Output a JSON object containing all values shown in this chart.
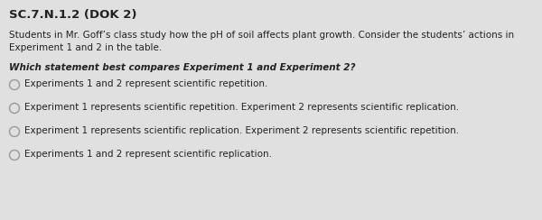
{
  "title": "SC.7.N.1.2 (DOK 2)",
  "body_text": "Students in Mr. Goff’s class study how the pH of soil affects plant growth. Consider the students’ actions in\nExperiment 1 and 2 in the table.",
  "question": "Which statement best compares Experiment 1 and Experiment 2?",
  "choices": [
    "Experiments 1 and 2 represent scientific repetition.",
    "Experiment 1 represents scientific repetition. Experiment 2 represents scientific replication.",
    "Experiment 1 represents scientific replication. Experiment 2 represents scientific repetition.",
    "Experiments 1 and 2 represent scientific replication."
  ],
  "bg_color": "#e0e0e0",
  "title_fontsize": 9.5,
  "body_fontsize": 7.5,
  "question_fontsize": 7.5,
  "choice_fontsize": 7.5,
  "circle_color": "#999999",
  "text_color": "#222222"
}
